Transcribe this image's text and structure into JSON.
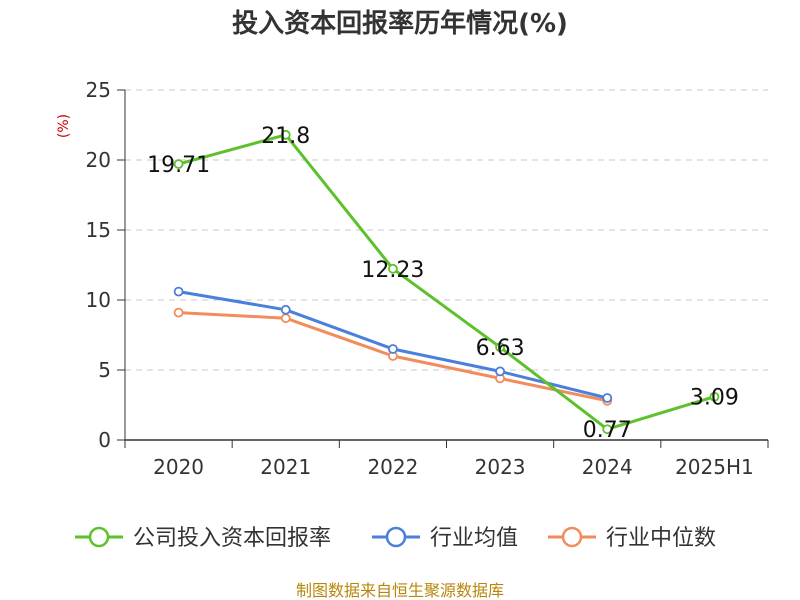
{
  "chart_data": {
    "type": "line",
    "title": "投入资本回报率历年情况(%)",
    "ylabel": "(%)",
    "categories": [
      "2020",
      "2021",
      "2022",
      "2023",
      "2024",
      "2025H1"
    ],
    "ylim": [
      0,
      25
    ],
    "yticks": [
      "0",
      "5",
      "10",
      "15",
      "20",
      "25"
    ],
    "grid": true,
    "legend_position": "bottom",
    "series": [
      {
        "name": "公司投入资本回报率",
        "color": "#5cc12a",
        "values": [
          19.71,
          21.8,
          12.23,
          6.63,
          0.77,
          3.09
        ],
        "labels": [
          "19.71",
          "21.8",
          "12.23",
          "6.63",
          "0.77",
          "3.09"
        ]
      },
      {
        "name": "行业均值",
        "color": "#4a7fdc",
        "values": [
          10.6,
          9.3,
          6.5,
          4.9,
          3.0,
          null
        ]
      },
      {
        "name": "行业中位数",
        "color": "#f28c5c",
        "values": [
          9.1,
          8.7,
          6.0,
          4.4,
          2.8,
          null
        ]
      }
    ]
  },
  "source": "制图数据来自恒生聚源数据库"
}
